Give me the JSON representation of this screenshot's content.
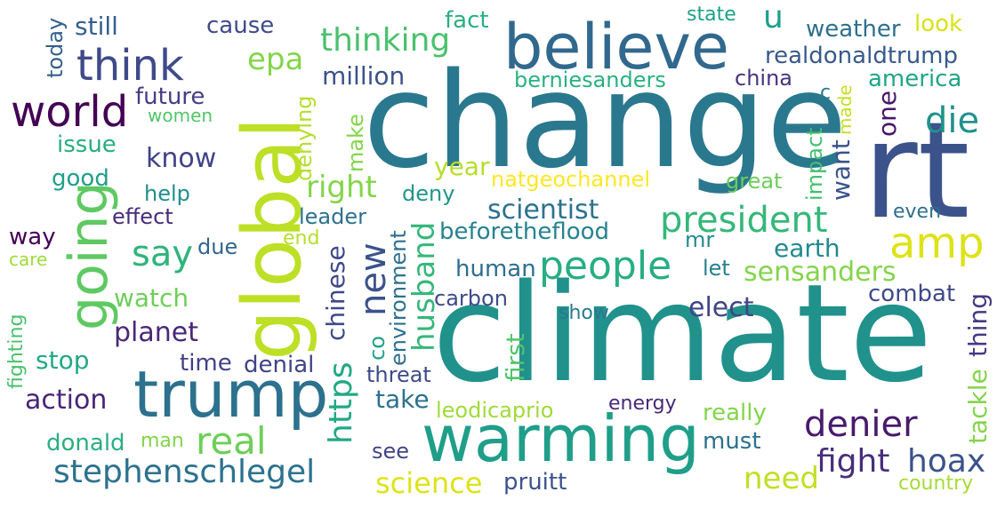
{
  "wordcloud": {
    "words": [
      {
        "text": "change",
        "color": "#2a788e"
      },
      {
        "text": "climate",
        "color": "#21918c"
      },
      {
        "text": "rt",
        "color": "#3b528b"
      },
      {
        "text": "believe",
        "color": "#31688e"
      },
      {
        "text": "global",
        "color": "#bddf26"
      },
      {
        "text": "warming",
        "color": "#1f9e89"
      },
      {
        "text": "trump",
        "color": "#2c718e"
      },
      {
        "text": "going",
        "color": "#5ec962"
      },
      {
        "text": "amp",
        "color": "#dde318"
      },
      {
        "text": "think",
        "color": "#3e4a89"
      },
      {
        "text": "world",
        "color": "#440154"
      },
      {
        "text": "president",
        "color": "#35b779"
      },
      {
        "text": "people",
        "color": "#28ae80"
      },
      {
        "text": "real",
        "color": "#6ece58"
      },
      {
        "text": "denier",
        "color": "#481a6c"
      },
      {
        "text": "fight",
        "color": "#472d7b"
      },
      {
        "text": "hoax",
        "color": "#3b528b"
      },
      {
        "text": "stephenschlegel",
        "color": "#2c728e"
      },
      {
        "text": "science",
        "color": "#dde318"
      },
      {
        "text": "need",
        "color": "#c2df23"
      },
      {
        "text": "thinking",
        "color": "#4ac16d"
      },
      {
        "text": "say",
        "color": "#2fb47c"
      },
      {
        "text": "new",
        "color": "#3b528b"
      },
      {
        "text": "husband",
        "color": "#35b779"
      },
      {
        "text": "https",
        "color": "#22a884"
      },
      {
        "text": "die",
        "color": "#21918c"
      },
      {
        "text": "right",
        "color": "#84d44b"
      },
      {
        "text": "scientist",
        "color": "#2c728e"
      },
      {
        "text": "u",
        "color": "#1f9e89"
      },
      {
        "text": "epa",
        "color": "#84d44b"
      },
      {
        "text": "know",
        "color": "#404387"
      },
      {
        "text": "sensanders",
        "color": "#84d44b"
      },
      {
        "text": "beforetheflood",
        "color": "#26828e"
      },
      {
        "text": "earth",
        "color": "#23898e"
      },
      {
        "text": "elect",
        "color": "#414487"
      },
      {
        "text": "action",
        "color": "#482576"
      },
      {
        "text": "planet",
        "color": "#482878"
      },
      {
        "text": "weather",
        "color": "#2d708e"
      },
      {
        "text": "realdonaldtrump",
        "color": "#38598c"
      },
      {
        "text": "america",
        "color": "#20a486"
      },
      {
        "text": "still",
        "color": "#355f8d"
      },
      {
        "text": "cause",
        "color": "#3e4a89"
      },
      {
        "text": "today",
        "color": "#355f8d"
      },
      {
        "text": "fact",
        "color": "#29af7f"
      },
      {
        "text": "state",
        "color": "#1fa088"
      },
      {
        "text": "look",
        "color": "#d8e219"
      },
      {
        "text": "million",
        "color": "#3b528b"
      },
      {
        "text": "berniesanders",
        "color": "#2ab07f"
      },
      {
        "text": "china",
        "color": "#46337e"
      },
      {
        "text": "future",
        "color": "#433e85"
      },
      {
        "text": "women",
        "color": "#52c569"
      },
      {
        "text": "issue",
        "color": "#27ad81"
      },
      {
        "text": "good",
        "color": "#1f9e89"
      },
      {
        "text": "help",
        "color": "#228d8d"
      },
      {
        "text": "effect",
        "color": "#472c7a"
      },
      {
        "text": "way",
        "color": "#440154"
      },
      {
        "text": "care",
        "color": "#a0da39"
      },
      {
        "text": "due",
        "color": "#32658e"
      },
      {
        "text": "end",
        "color": "#b5de2b"
      },
      {
        "text": "leader",
        "color": "#2d708e"
      },
      {
        "text": "deny",
        "color": "#1f958b"
      },
      {
        "text": "year",
        "color": "#b5de2b"
      },
      {
        "text": "natgeochannel",
        "color": "#fde725"
      },
      {
        "text": "great",
        "color": "#6ccd5a"
      },
      {
        "text": "impact",
        "color": "#44bf70"
      },
      {
        "text": "want",
        "color": "#3b528b"
      },
      {
        "text": "made",
        "color": "#c5e021"
      },
      {
        "text": "one",
        "color": "#481769"
      },
      {
        "text": "c",
        "color": "#2a788e"
      },
      {
        "text": "even",
        "color": "#2e6f8e"
      },
      {
        "text": "mr",
        "color": "#238a8d"
      },
      {
        "text": "let",
        "color": "#26828e"
      },
      {
        "text": "human",
        "color": "#2e6e8e"
      },
      {
        "text": "combat",
        "color": "#3e4989"
      },
      {
        "text": "watch",
        "color": "#6ece58"
      },
      {
        "text": "carbon",
        "color": "#3e4a89"
      },
      {
        "text": "show",
        "color": "#2a788e"
      },
      {
        "text": "chinese",
        "color": "#3f4889"
      },
      {
        "text": "environment",
        "color": "#2d708e"
      },
      {
        "text": "co",
        "color": "#1fa187"
      },
      {
        "text": "first",
        "color": "#52c569"
      },
      {
        "text": "thing",
        "color": "#443983"
      },
      {
        "text": "tackle",
        "color": "#84d44b"
      },
      {
        "text": "denying",
        "color": "#b5de2b"
      },
      {
        "text": "make",
        "color": "#84d44b"
      },
      {
        "text": "fighting",
        "color": "#4ac16d"
      },
      {
        "text": "stop",
        "color": "#22a884"
      },
      {
        "text": "time",
        "color": "#424086"
      },
      {
        "text": "denial",
        "color": "#404387"
      },
      {
        "text": "threat",
        "color": "#3e4a89"
      },
      {
        "text": "take",
        "color": "#2c718e"
      },
      {
        "text": "leodicaprio",
        "color": "#a0da39"
      },
      {
        "text": "energy",
        "color": "#482878"
      },
      {
        "text": "really",
        "color": "#84d44b"
      },
      {
        "text": "must",
        "color": "#2d708e"
      },
      {
        "text": "donald",
        "color": "#29af7f"
      },
      {
        "text": "man",
        "color": "#84d44b"
      },
      {
        "text": "see",
        "color": "#414487"
      },
      {
        "text": "pruitt",
        "color": "#3b528b"
      },
      {
        "text": "country",
        "color": "#a5db36"
      }
    ]
  }
}
